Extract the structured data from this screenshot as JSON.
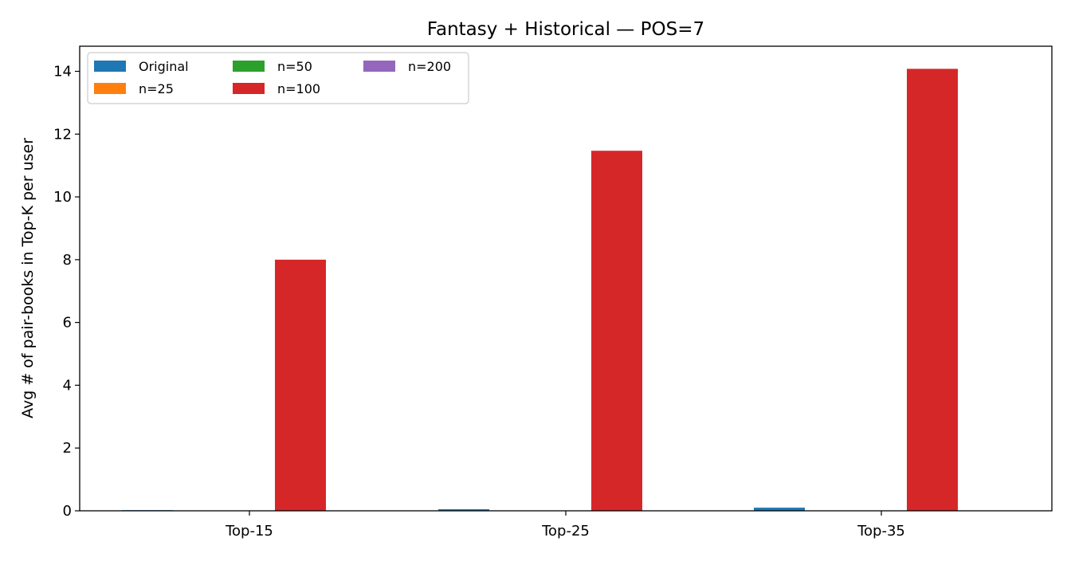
{
  "chart_data": {
    "type": "bar",
    "title": "Fantasy + Historical — POS=7",
    "xlabel": "",
    "ylabel": "Avg # of pair-books in Top-K per user",
    "categories": [
      "Top-15",
      "Top-25",
      "Top-35"
    ],
    "series": [
      {
        "name": "Original",
        "color": "#1f77b4",
        "values": [
          0.02,
          0.05,
          0.1
        ]
      },
      {
        "name": "n=25",
        "color": "#ff7f0e",
        "values": [
          0,
          0,
          0
        ]
      },
      {
        "name": "n=50",
        "color": "#2ca02c",
        "values": [
          0,
          0,
          0
        ]
      },
      {
        "name": "n=100",
        "color": "#d62728",
        "values": [
          8.0,
          11.47,
          14.08
        ]
      },
      {
        "name": "n=200",
        "color": "#9467bd",
        "values": [
          0,
          0,
          0
        ]
      }
    ],
    "ylim": [
      0,
      14.8
    ],
    "yticks": [
      0,
      2,
      4,
      6,
      8,
      10,
      12,
      14
    ],
    "grid": false,
    "legend": {
      "position": "top-left",
      "columns": 3
    }
  }
}
